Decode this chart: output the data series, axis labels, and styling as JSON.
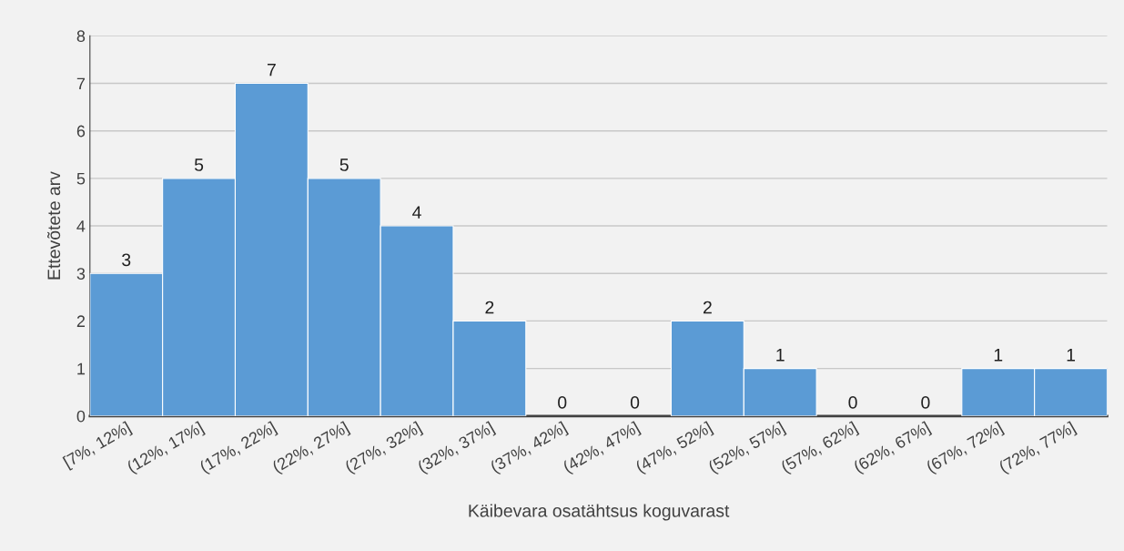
{
  "chart_data": {
    "type": "bar",
    "categories": [
      "[7%, 12%]",
      "(12%, 17%]",
      "(17%, 22%]",
      "(22%, 27%]",
      "(27%, 32%]",
      "(32%, 37%]",
      "(37%, 42%]",
      "(42%, 47%]",
      "(47%, 52%]",
      "(52%, 57%]",
      "(57%, 62%]",
      "(62%, 67%]",
      "(67%, 72%]",
      "(72%, 77%]"
    ],
    "values": [
      3,
      5,
      7,
      5,
      4,
      2,
      0,
      0,
      2,
      1,
      0,
      0,
      1,
      1
    ],
    "color": "#5b9bd5",
    "xlabel": "Käibevara osatähtsus koguvarast",
    "ylabel": "Ettevõtete arv",
    "ylim": [
      0,
      8
    ],
    "yticks": [
      0,
      1,
      2,
      3,
      4,
      5,
      6,
      7,
      8
    ],
    "grid": "y",
    "data_labels": true
  }
}
